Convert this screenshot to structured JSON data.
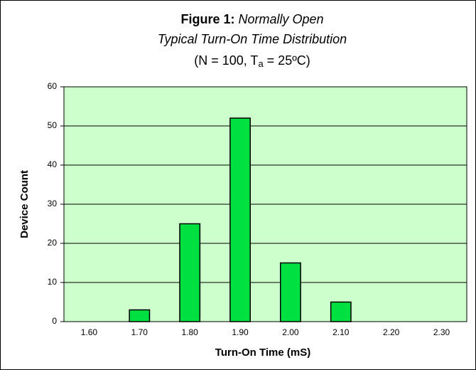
{
  "chart_data": {
    "type": "bar",
    "title": "Figure 1:",
    "subtitle": [
      "Normally Open",
      "Typical Turn-On Time Distribution"
    ],
    "conditions": [
      "(N = 100, T",
      "a",
      " = 25ºC)"
    ],
    "x_label": "Turn-On Time (mS)",
    "y_label": "Device Count",
    "categories": [
      "1.60",
      "1.70",
      "1.80",
      "1.90",
      "2.00",
      "2.10",
      "2.20",
      "2.30"
    ],
    "values": [
      0,
      3,
      25,
      52,
      15,
      5,
      0,
      0
    ],
    "color": "#00e040",
    "plot_background": "#ccffcc",
    "ylim": [
      0,
      60
    ],
    "yticks": [
      0,
      10,
      20,
      30,
      40,
      50,
      60
    ],
    "grid": true
  }
}
